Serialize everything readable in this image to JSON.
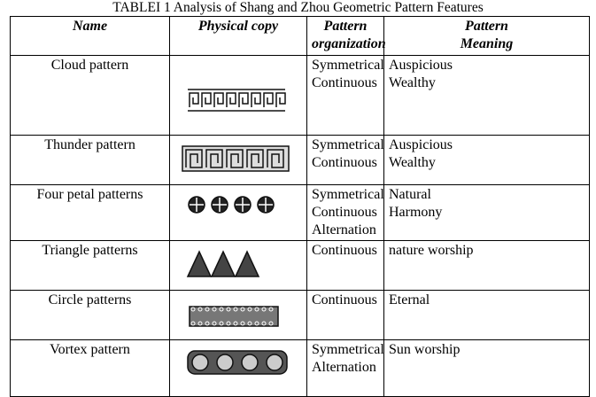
{
  "caption": "TABLEI 1 Analysis of Shang and Zhou Geometric Pattern Features",
  "table": {
    "header": [
      [
        "Name"
      ],
      [
        "Physical copy"
      ],
      [
        "Pattern",
        "organization"
      ],
      [
        "Pattern",
        "Meaning"
      ]
    ],
    "rows": [
      {
        "name": "Cloud pattern",
        "organization": [
          "Symmetrical",
          "Continuous"
        ],
        "meaning": [
          "Auspicious",
          "Wealthy"
        ]
      },
      {
        "name": "Thunder pattern",
        "organization": [
          "Symmetrical",
          "Continuous"
        ],
        "meaning": [
          "Auspicious",
          "Wealthy"
        ]
      },
      {
        "name": "Four petal patterns",
        "organization": [
          "Symmetrical",
          "Continuous",
          "Alternation"
        ],
        "meaning": [
          "Natural",
          "Harmony"
        ]
      },
      {
        "name": "Triangle patterns",
        "organization": [
          "Continuous"
        ],
        "meaning": [
          "nature worship"
        ]
      },
      {
        "name": "Circle patterns",
        "organization": [
          "Continuous"
        ],
        "meaning": [
          "Eternal"
        ]
      },
      {
        "name": "Vortex pattern",
        "organization": [
          "Symmetrical",
          "Alternation"
        ],
        "meaning": [
          "Sun worship"
        ]
      }
    ]
  }
}
